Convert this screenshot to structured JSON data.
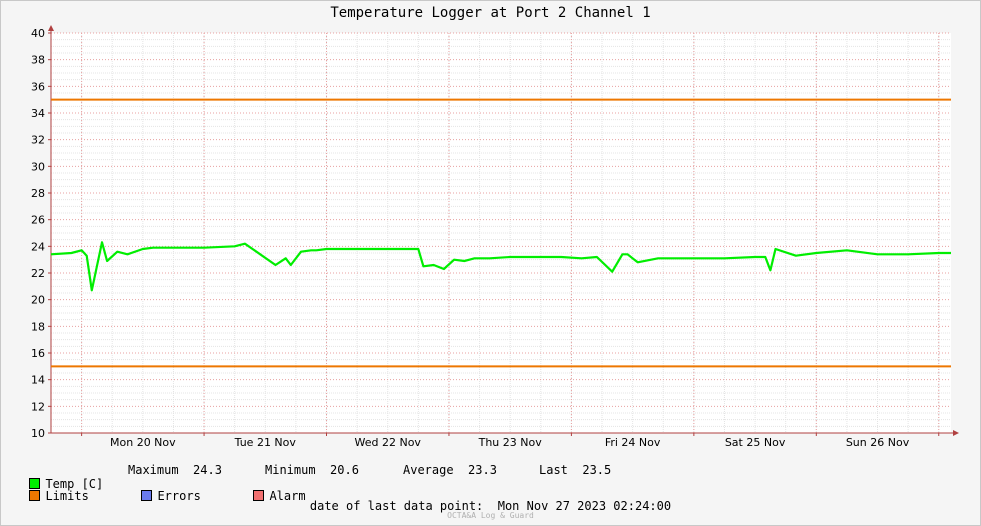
{
  "chart_data": {
    "type": "line",
    "title": "Temperature Logger at Port 2 Channel 1",
    "ylim": [
      10,
      40
    ],
    "yticks": [
      10,
      12,
      14,
      16,
      18,
      20,
      22,
      24,
      26,
      28,
      30,
      32,
      34,
      36,
      38,
      40
    ],
    "xlim": [
      "2023-11-19 18:00",
      "2023-11-27 02:24"
    ],
    "xticks": [
      "Mon 20 Nov",
      "Tue 21 Nov",
      "Wed 22 Nov",
      "Thu 23 Nov",
      "Fri 24 Nov",
      "Sat 25 Nov",
      "Sun 26 Nov"
    ],
    "grid": true,
    "series": [
      {
        "name": "Temp [C]",
        "color": "#00ee00",
        "x": [
          "2023-11-19 18:00",
          "2023-11-19 22:00",
          "2023-11-20 00:00",
          "2023-11-20 01:00",
          "2023-11-20 02:00",
          "2023-11-20 03:00",
          "2023-11-20 04:00",
          "2023-11-20 05:00",
          "2023-11-20 07:00",
          "2023-11-20 09:00",
          "2023-11-20 12:00",
          "2023-11-20 14:00",
          "2023-11-20 18:00",
          "2023-11-21 00:00",
          "2023-11-21 06:00",
          "2023-11-21 08:00",
          "2023-11-21 11:00",
          "2023-11-21 14:00",
          "2023-11-21 16:00",
          "2023-11-21 17:00",
          "2023-11-21 19:00",
          "2023-11-21 21:00",
          "2023-11-21 22:00",
          "2023-11-22 00:00",
          "2023-11-22 06:00",
          "2023-11-22 12:00",
          "2023-11-22 18:00",
          "2023-11-22 19:00",
          "2023-11-22 21:00",
          "2023-11-22 23:00",
          "2023-11-23 01:00",
          "2023-11-23 03:00",
          "2023-11-23 04:00",
          "2023-11-23 05:00",
          "2023-11-23 08:00",
          "2023-11-23 12:00",
          "2023-11-23 16:00",
          "2023-11-23 22:00",
          "2023-11-24 02:00",
          "2023-11-24 05:00",
          "2023-11-24 08:00",
          "2023-11-24 10:00",
          "2023-11-24 11:00",
          "2023-11-24 13:00",
          "2023-11-24 17:00",
          "2023-11-24 20:00",
          "2023-11-24 21:00",
          "2023-11-25 00:00",
          "2023-11-25 06:00",
          "2023-11-25 12:00",
          "2023-11-25 14:00",
          "2023-11-25 15:00",
          "2023-11-25 16:00",
          "2023-11-25 20:00",
          "2023-11-26 00:00",
          "2023-11-26 06:00",
          "2023-11-26 12:00",
          "2023-11-26 18:00",
          "2023-11-27 00:00",
          "2023-11-27 02:24"
        ],
        "values": [
          23.4,
          23.5,
          23.7,
          23.3,
          20.7,
          22.5,
          24.3,
          22.9,
          23.6,
          23.4,
          23.8,
          23.9,
          23.9,
          23.9,
          24.0,
          24.2,
          23.4,
          22.6,
          23.1,
          22.6,
          23.6,
          23.7,
          23.7,
          23.8,
          23.8,
          23.8,
          23.8,
          22.5,
          22.6,
          22.3,
          23.0,
          22.9,
          23.0,
          23.1,
          23.1,
          23.2,
          23.2,
          23.2,
          23.1,
          23.2,
          22.1,
          23.4,
          23.4,
          22.8,
          23.1,
          23.1,
          23.1,
          23.1,
          23.1,
          23.2,
          23.2,
          22.2,
          23.8,
          23.3,
          23.5,
          23.7,
          23.4,
          23.4,
          23.5,
          23.5
        ]
      },
      {
        "name": "Limits",
        "color": "#ee7700",
        "values": [
          15,
          35
        ]
      }
    ]
  },
  "legend": {
    "temp": {
      "label": "Temp [C]",
      "color": "#00ee00"
    },
    "limits": {
      "label": "Limits",
      "color": "#ee7700"
    },
    "errors": {
      "label": "Errors",
      "color": "#6b7bee"
    },
    "alarm": {
      "label": "Alarm",
      "color": "#f07070"
    }
  },
  "stats": {
    "maximum_label": "Maximum",
    "maximum": "24.3",
    "minimum_label": "Minimum",
    "minimum": "20.6",
    "average_label": "Average",
    "average": "23.3",
    "last_label": "Last",
    "last": "23.5"
  },
  "last_data_point": "date of last data point:  Mon Nov 27 2023 02:24:00",
  "footer": "OCTA&A Log & Guard"
}
